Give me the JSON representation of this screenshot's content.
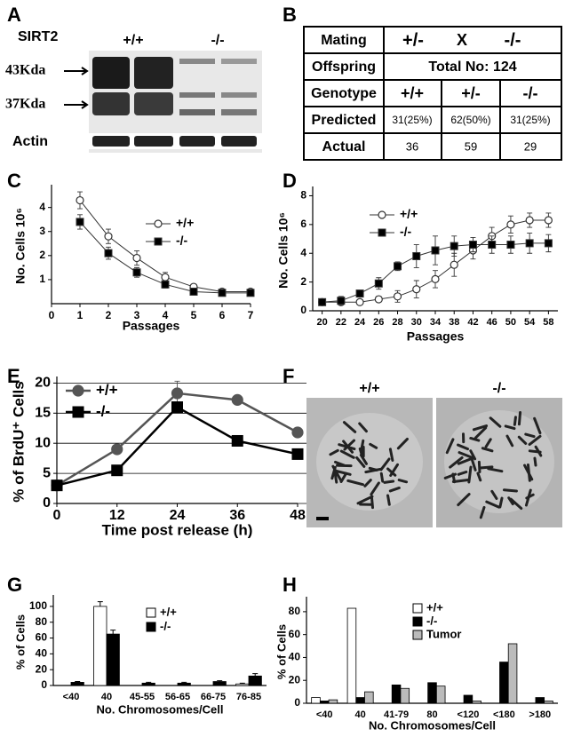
{
  "panel_labels": [
    "A",
    "B",
    "C",
    "D",
    "E",
    "F",
    "G",
    "H"
  ],
  "blot": {
    "title": "SIRT2",
    "genotypes": [
      "+/+",
      "-/-"
    ],
    "markers": [
      "43Kda",
      "37Kda"
    ],
    "loading": "Actin"
  },
  "table": {
    "rows": [
      [
        "Mating",
        "+/-",
        "X",
        "-/-"
      ],
      [
        "Offspring",
        "Total No: 124"
      ],
      [
        "Genotype",
        "+/+",
        "+/-",
        "-/-"
      ],
      [
        "Predicted",
        "31(25%)",
        "62(50%)",
        "31(25%)"
      ],
      [
        "Actual",
        "36",
        "59",
        "29"
      ]
    ]
  },
  "metaphase": {
    "genotypes": [
      "+/+",
      "-/-"
    ]
  },
  "chart_data": [
    {
      "type": "line",
      "ylabel": "No. Cells 10⁶",
      "xlabel": "Passages",
      "x": [
        1,
        2,
        3,
        4,
        5,
        6,
        7
      ],
      "xlim": [
        0,
        7
      ],
      "xticks": [
        0,
        1,
        2,
        3,
        4,
        5,
        6,
        7
      ],
      "ylim": [
        0,
        4.8
      ],
      "yticks": [
        1,
        2,
        3,
        4
      ],
      "series": [
        {
          "name": "+/+",
          "color": "#333333",
          "marker": "circle",
          "fill": "#ffffff",
          "values": [
            4.3,
            2.8,
            1.9,
            1.1,
            0.7,
            0.5,
            0.5
          ],
          "errors": [
            0.35,
            0.3,
            0.3,
            0.2,
            0.1,
            0.1,
            0.1
          ]
        },
        {
          "name": "-/-",
          "color": "#333333",
          "marker": "square",
          "fill": "#000000",
          "values": [
            3.4,
            2.1,
            1.3,
            0.8,
            0.5,
            0.45,
            0.45
          ],
          "errors": [
            0.3,
            0.25,
            0.2,
            0.15,
            0.1,
            0.1,
            0.1
          ]
        }
      ]
    },
    {
      "type": "line",
      "ylabel": "No. Cells 10⁶",
      "xlabel": "Passages",
      "categories": [
        "20",
        "22",
        "24",
        "26",
        "28",
        "30",
        "34",
        "38",
        "42",
        "46",
        "50",
        "54",
        "58"
      ],
      "ylim": [
        0,
        8.4
      ],
      "yticks": [
        0,
        2,
        4,
        6,
        8
      ],
      "series": [
        {
          "name": "+/+",
          "color": "#333333",
          "marker": "circle",
          "fill": "#ffffff",
          "values": [
            0.6,
            0.6,
            0.6,
            0.8,
            1.0,
            1.5,
            2.2,
            3.2,
            4.2,
            5.2,
            6.0,
            6.3,
            6.3
          ],
          "errors": [
            0.1,
            0.1,
            0.15,
            0.2,
            0.4,
            0.6,
            0.6,
            0.8,
            0.6,
            0.6,
            0.6,
            0.5,
            0.5
          ]
        },
        {
          "name": "-/-",
          "color": "#333333",
          "marker": "square",
          "fill": "#000000",
          "values": [
            0.6,
            0.7,
            1.2,
            1.9,
            3.1,
            3.8,
            4.2,
            4.5,
            4.6,
            4.6,
            4.6,
            4.7,
            4.7
          ],
          "errors": [
            0.1,
            0.3,
            0.2,
            0.4,
            0.3,
            0.8,
            1.0,
            0.7,
            0.5,
            0.6,
            0.6,
            0.7,
            0.6
          ]
        }
      ]
    },
    {
      "type": "line",
      "ylabel": "% of BrdU⁺ Cells",
      "xlabel": "Time post release (h)",
      "x": [
        0,
        12,
        24,
        36,
        48
      ],
      "xlim": [
        0,
        48
      ],
      "xticks": [
        0,
        12,
        24,
        36,
        48
      ],
      "ylim": [
        0,
        20.5
      ],
      "yticks": [
        0,
        5,
        10,
        15,
        20
      ],
      "grid": true,
      "series": [
        {
          "name": "+/+",
          "color": "#555555",
          "marker": "circle",
          "fill": "#555555",
          "values": [
            3,
            9,
            18.3,
            17.2,
            11.8
          ],
          "errors": [
            null,
            null,
            2,
            0.4,
            0.8
          ]
        },
        {
          "name": "-/-",
          "color": "#000000",
          "marker": "square",
          "fill": "#000000",
          "values": [
            3,
            5.5,
            16,
            10.4,
            8.2
          ]
        }
      ]
    },
    {
      "type": "bar",
      "ylabel": "% of Cells",
      "xlabel": "No. Chromosomes/Cell",
      "categories": [
        "<40",
        "40",
        "45-55",
        "56-65",
        "66-75",
        "76-85"
      ],
      "ylim": [
        0,
        110
      ],
      "yticks": [
        0,
        20,
        40,
        60,
        80,
        100
      ],
      "series": [
        {
          "name": "+/+",
          "color": "#ffffff",
          "values": [
            0,
            100,
            0,
            0,
            0,
            2
          ],
          "errors": [
            null,
            6,
            null,
            null,
            null,
            1
          ]
        },
        {
          "name": "-/-",
          "color": "#000000",
          "values": [
            4,
            65,
            3,
            3,
            5,
            12
          ],
          "errors": [
            1,
            5,
            1,
            1,
            1,
            3
          ]
        }
      ]
    },
    {
      "type": "bar",
      "ylabel": "% of Cells",
      "xlabel": "No. Chromosomes/Cell",
      "categories": [
        "<40",
        "40",
        "41-79",
        "80",
        "<120",
        "<180",
        ">180"
      ],
      "ylim": [
        0,
        90
      ],
      "yticks": [
        0,
        20,
        40,
        60,
        80
      ],
      "series": [
        {
          "name": "+/+",
          "color": "#ffffff",
          "values": [
            5,
            83,
            0,
            0,
            0,
            0,
            0
          ]
        },
        {
          "name": "-/-",
          "color": "#000000",
          "values": [
            2,
            5,
            16,
            18,
            7,
            36,
            5
          ]
        },
        {
          "name": "Tumor",
          "color": "#bbbbbb",
          "values": [
            3,
            10,
            13,
            15,
            2,
            52,
            2
          ]
        }
      ]
    }
  ]
}
